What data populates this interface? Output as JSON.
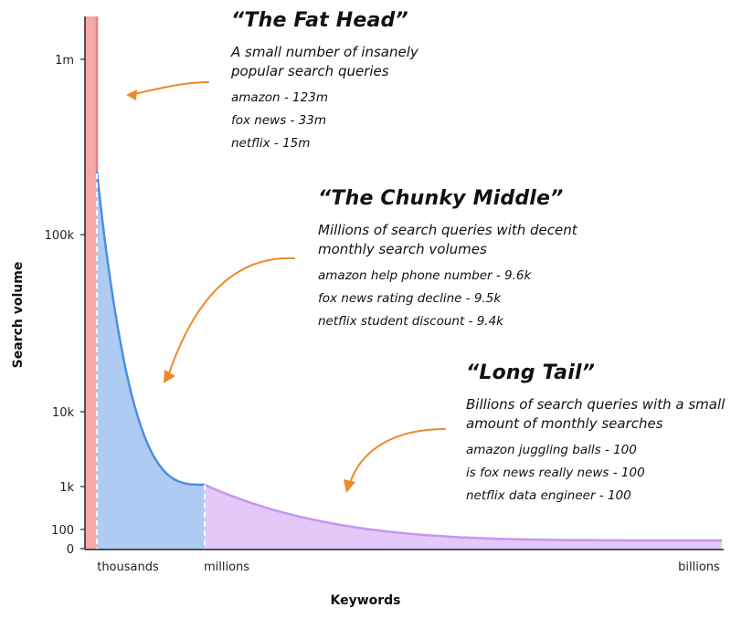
{
  "chart_data": {
    "type": "area",
    "xlabel": "Keywords",
    "ylabel": "Search volume",
    "y_ticks": [
      "1m",
      "100k",
      "10k",
      "1k",
      "100",
      "0"
    ],
    "y_tick_values": [
      1000000,
      100000,
      10000,
      1000,
      100,
      0
    ],
    "x_ticks": [
      "thousands",
      "millions",
      "billions"
    ],
    "y_scale": "log",
    "grid": false,
    "series": [
      {
        "color": "#f28b8b"
      },
      {
        "color": "#a7c8f5"
      },
      {
        "color": "#e2c4f7"
      }
    ]
  },
  "annotations": [
    {
      "title": "“The Fat Head”",
      "description": "A small number of insanely popular search queries",
      "examples": [
        "amazon - 123m",
        "fox news - 33m",
        "netflix - 15m"
      ]
    },
    {
      "title": "“The Chunky Middle”",
      "description": "Millions of search queries with decent monthly search volumes",
      "examples": [
        "amazon help phone number - 9.6k",
        "fox news rating decline - 9.5k",
        "netflix student discount - 9.4k"
      ]
    },
    {
      "title": "“Long Tail”",
      "description": "Billions of search queries with a small amount of monthly searches",
      "examples": [
        "amazon juggling balls - 100",
        "is fox news really news - 100",
        "netflix data engineer - 100"
      ]
    }
  ],
  "colors": {
    "fat_head_fill": "#f7a9a9",
    "fat_head_line": "#f07f7f",
    "middle_fill": "#aecbf4",
    "middle_line": "#4a8fe0",
    "tail_fill": "#e4c8f8",
    "tail_line": "#c597ee",
    "arrow": "#ec8a2a"
  }
}
